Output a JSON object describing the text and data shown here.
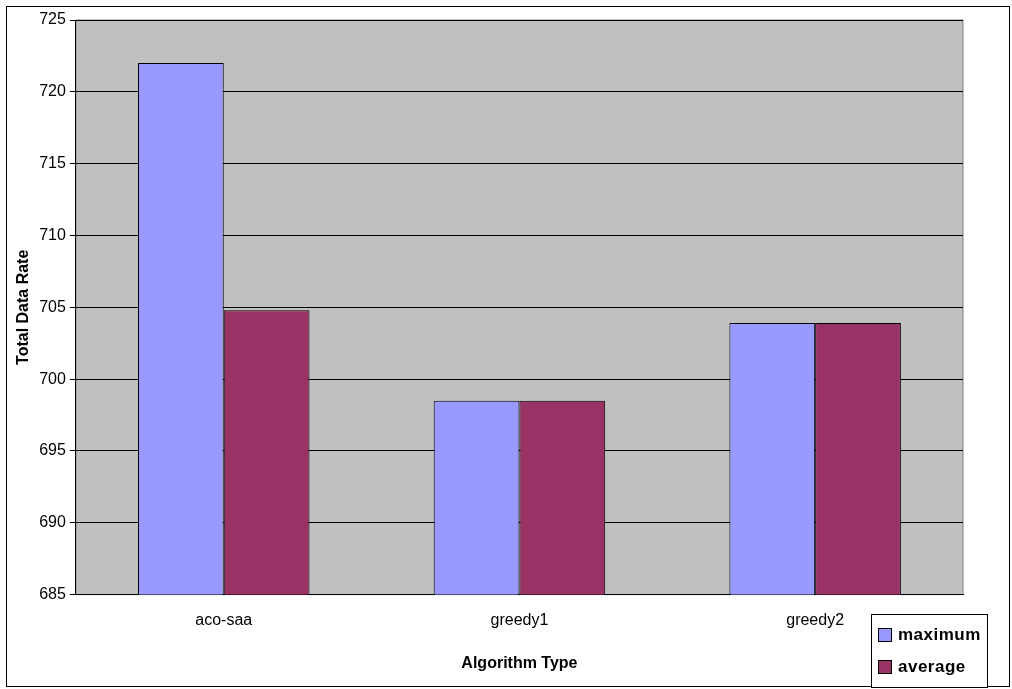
{
  "chart_data": {
    "type": "bar",
    "xlabel": "Algorithm Type",
    "ylabel": "Total Data Rate",
    "categories": [
      "aco-saa",
      "greedy1",
      "greedy2"
    ],
    "series": [
      {
        "name": "maximum",
        "color": "#9999ff",
        "values": [
          722.0,
          698.5,
          703.9
        ]
      },
      {
        "name": "average",
        "color": "#993366",
        "values": [
          704.8,
          698.5,
          703.9
        ]
      }
    ],
    "ylim": [
      685,
      725
    ],
    "yticks": [
      685,
      690,
      695,
      700,
      705,
      710,
      715,
      720,
      725
    ],
    "grid": "y",
    "legend": "bottom right"
  }
}
